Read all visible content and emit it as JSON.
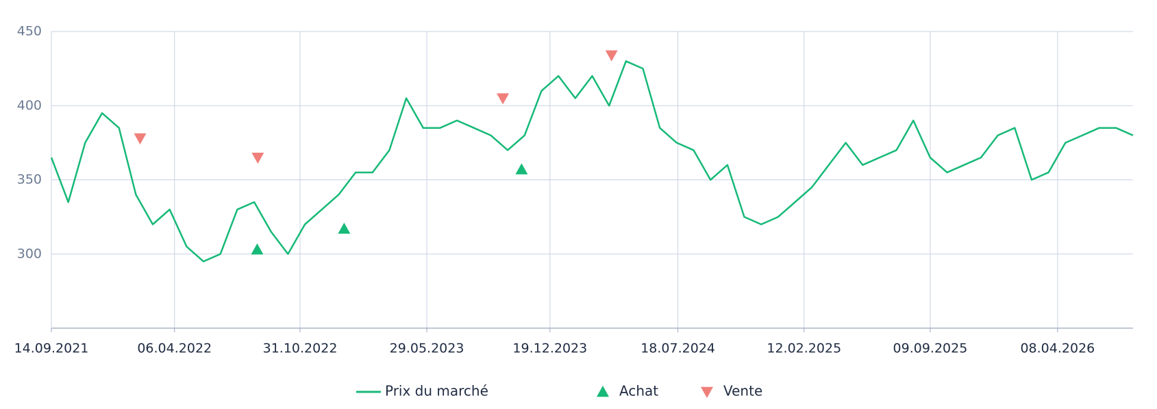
{
  "chart_data": {
    "type": "line",
    "x": [
      "14.09.2021",
      "12.10.2021",
      "09.11.2021",
      "07.12.2021",
      "04.01.2022",
      "01.02.2022",
      "01.03.2022",
      "29.03.2022",
      "26.04.2022",
      "24.05.2022",
      "21.06.2022",
      "19.07.2022",
      "16.08.2022",
      "13.09.2022",
      "11.10.2022",
      "08.11.2022",
      "06.12.2022",
      "03.01.2023",
      "31.01.2023",
      "28.02.2023",
      "28.03.2023",
      "25.04.2023",
      "23.05.2023",
      "20.06.2023",
      "18.07.2023",
      "15.08.2023",
      "12.09.2023",
      "10.10.2023",
      "07.11.2023",
      "05.12.2023",
      "02.01.2024",
      "30.01.2024",
      "27.02.2024",
      "26.03.2024",
      "23.04.2024",
      "21.05.2024",
      "18.06.2024",
      "16.07.2024",
      "13.08.2024",
      "10.09.2024",
      "08.10.2024",
      "05.11.2024",
      "03.12.2024",
      "31.12.2024",
      "28.01.2025",
      "25.02.2025",
      "25.03.2025",
      "22.04.2025",
      "20.05.2025",
      "17.06.2025",
      "15.07.2025",
      "12.08.2025",
      "09.09.2025",
      "07.10.2025",
      "04.11.2025",
      "02.12.2025",
      "30.12.2025",
      "27.01.2026",
      "24.02.2026",
      "24.03.2026",
      "21.04.2026",
      "19.05.2026",
      "16.06.2026",
      "14.07.2026",
      "11.08.2026"
    ],
    "series": [
      {
        "name": "Prix du marché",
        "color": "#17b978",
        "values": [
          365,
          335,
          375,
          395,
          385,
          340,
          320,
          330,
          305,
          295,
          300,
          330,
          335,
          315,
          300,
          320,
          330,
          340,
          355,
          355,
          370,
          405,
          385,
          385,
          390,
          385,
          380,
          370,
          380,
          410,
          420,
          405,
          420,
          400,
          430,
          425,
          385,
          375,
          370,
          350,
          360,
          325,
          320,
          325,
          335,
          345,
          360,
          375,
          360,
          365,
          370,
          390,
          365,
          355,
          360,
          365,
          380,
          385,
          350,
          355,
          375,
          380,
          385,
          385,
          380
        ]
      }
    ],
    "markers": [
      {
        "name": "Achat",
        "color": "#17b978",
        "marker": "triangle-up",
        "x": [
          "21.08.2022",
          "12.01.2023",
          "02.11.2023"
        ],
        "values": [
          303,
          317,
          357
        ]
      },
      {
        "name": "Vente",
        "color": "#f07f7a",
        "marker": "triangle-down",
        "x": [
          "08.02.2022",
          "22.08.2022",
          "02.10.2023",
          "30.03.2024"
        ],
        "values": [
          378,
          365,
          405,
          434
        ]
      }
    ],
    "xlim": [
      "14.09.2021",
      "11.08.2026"
    ],
    "xticks": [
      "14.09.2021",
      "06.04.2022",
      "31.10.2022",
      "29.05.2023",
      "19.12.2023",
      "18.07.2024",
      "12.02.2025",
      "09.09.2025",
      "08.04.2026"
    ],
    "ylim": [
      250,
      450
    ],
    "yticks": [
      300,
      350,
      400,
      450
    ],
    "grid": true
  }
}
